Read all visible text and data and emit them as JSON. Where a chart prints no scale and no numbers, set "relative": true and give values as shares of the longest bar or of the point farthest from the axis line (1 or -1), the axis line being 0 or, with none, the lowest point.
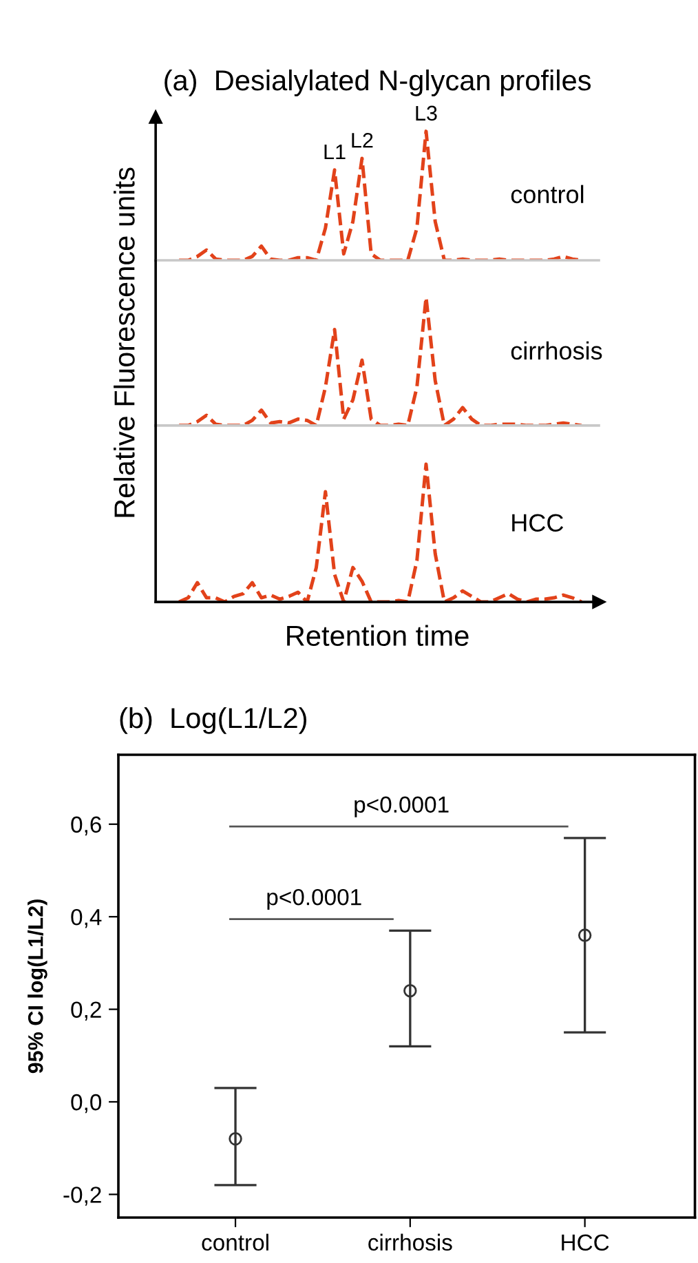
{
  "chart_data": [
    {
      "type": "line",
      "title": "(a)  Desialylated N-glycan profiles",
      "relative": true,
      "tick_labels": false,
      "line_style": "dashed",
      "categories": [
        null,
        null,
        null,
        null,
        null,
        null,
        null,
        null,
        null,
        null,
        null,
        null,
        null,
        null,
        null,
        null,
        null,
        null,
        null,
        null,
        null,
        null,
        null,
        null,
        null,
        null,
        null,
        null,
        null,
        null,
        null,
        null,
        null,
        null,
        null,
        null,
        null,
        null,
        null,
        null,
        null,
        null,
        null,
        null,
        null
      ],
      "series": [
        {
          "name": "control",
          "color": "#e2421a",
          "values": [
            0,
            0,
            0.03,
            0.08,
            0.01,
            0,
            0,
            0,
            0.03,
            0.11,
            0.01,
            0,
            0,
            0.02,
            0.02,
            0,
            0.25,
            0.7,
            0.05,
            0.3,
            0.79,
            0.05,
            0,
            0,
            0,
            0,
            0.25,
            1.0,
            0.3,
            0,
            0,
            0.01,
            0,
            0,
            0,
            0.01,
            0,
            0,
            0,
            0,
            0,
            0.01,
            0.03,
            0.01,
            0
          ]
        }
      ],
      "annotations": [
        {
          "text": "L1",
          "y": 0.7
        },
        {
          "text": "L2",
          "y": 0.79
        },
        {
          "text": "L3",
          "y": 1.0
        }
      ]
    },
    {
      "type": "line",
      "ylabel": "Relative Fluorescence units",
      "relative": true,
      "tick_labels": false,
      "line_style": "dashed",
      "categories": [
        null,
        null,
        null,
        null,
        null,
        null,
        null,
        null,
        null,
        null,
        null,
        null,
        null,
        null,
        null,
        null,
        null,
        null,
        null,
        null,
        null,
        null,
        null,
        null,
        null,
        null,
        null,
        null,
        null,
        null,
        null,
        null,
        null,
        null,
        null,
        null,
        null,
        null,
        null,
        null,
        null,
        null,
        null,
        null,
        null
      ],
      "series": [
        {
          "name": "cirrhosis",
          "color": "#e2421a",
          "values": [
            0,
            0,
            0.03,
            0.08,
            0.01,
            0,
            0,
            0,
            0.04,
            0.12,
            0.02,
            0.03,
            0.02,
            0.05,
            0.04,
            0,
            0.3,
            0.75,
            0.05,
            0.2,
            0.51,
            0.05,
            0,
            0,
            0.01,
            0,
            0.3,
            1.0,
            0.35,
            0,
            0.05,
            0.14,
            0.05,
            0,
            0,
            0.01,
            0.01,
            0.01,
            0,
            0,
            0,
            0.01,
            0.02,
            0.01,
            0
          ]
        }
      ]
    },
    {
      "type": "line",
      "xlabel": "Retention time",
      "relative": true,
      "tick_labels": false,
      "line_style": "dashed",
      "categories": [
        null,
        null,
        null,
        null,
        null,
        null,
        null,
        null,
        null,
        null,
        null,
        null,
        null,
        null,
        null,
        null,
        null,
        null,
        null,
        null,
        null,
        null,
        null,
        null,
        null,
        null,
        null,
        null,
        null,
        null,
        null,
        null,
        null,
        null,
        null,
        null,
        null,
        null,
        null,
        null,
        null,
        null,
        null,
        null,
        null
      ],
      "series": [
        {
          "name": "HCC",
          "color": "#e2421a",
          "values": [
            0,
            0.03,
            0.14,
            0.03,
            0.03,
            0,
            0.04,
            0.06,
            0.14,
            0.03,
            0.05,
            0.02,
            0.04,
            0.07,
            0,
            0.25,
            0.8,
            0.2,
            0,
            0.25,
            0.15,
            0,
            0,
            0,
            0.01,
            0,
            0.3,
            1.0,
            0.35,
            0,
            0.03,
            0.08,
            0.04,
            0,
            0,
            0.03,
            0.06,
            0.02,
            0,
            0.02,
            0.02,
            0.03,
            0.05,
            0.03,
            0
          ]
        }
      ]
    },
    {
      "type": "scatter",
      "title": "(b)  Log(L1/L2)",
      "ylabel": "95% CI log(L1/L2)",
      "marker": "circle",
      "categories": [
        "control",
        "cirrhosis",
        "HCC"
      ],
      "series": [
        {
          "color": "#333333",
          "values": [
            -0.08,
            0.24,
            0.36
          ],
          "errors": [
            [
              -0.18,
              0.03
            ],
            [
              0.12,
              0.37
            ],
            [
              0.15,
              0.57
            ]
          ]
        }
      ],
      "ylim": [
        -0.25,
        0.75
      ],
      "yticks": [
        {
          "value": -0.2,
          "label": "-0,2"
        },
        {
          "value": 0,
          "label": "0,0"
        },
        {
          "value": 0.2,
          "label": "0,2"
        },
        {
          "value": 0.4,
          "label": "0,4"
        },
        {
          "value": 0.6,
          "label": "0,6"
        }
      ],
      "annotations": [
        "p<0.0001",
        "p<0.0001"
      ]
    }
  ]
}
